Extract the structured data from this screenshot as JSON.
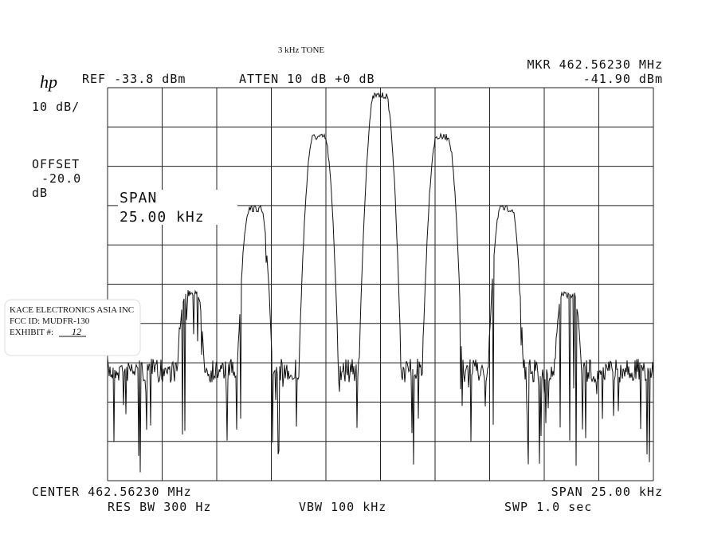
{
  "note_title": "3 kHz TONE",
  "logo": "hp",
  "header": {
    "ref": "REF -33.8 dBm",
    "atten": "ATTEN 10 dB +0 dB",
    "marker_freq": "MKR 462.56230 MHz",
    "marker_level": "-41.90 dBm"
  },
  "left_panel": {
    "scale": "10 dB/",
    "offset_label": "OFFSET",
    "offset_value": "-20.0",
    "offset_unit": "dB"
  },
  "span_annotation": {
    "label": "SPAN",
    "value": "25.00 kHz"
  },
  "stamp": {
    "company": "KACE ELECTRONICS ASIA INC",
    "fcc_id": "FCC ID:  MUDFR-130",
    "exhibit_label": "EXHIBIT #:",
    "exhibit_number": "12"
  },
  "footer": {
    "center": "CENTER 462.56230 MHz",
    "span": "SPAN 25.00 kHz",
    "res_bw": "RES BW 300 Hz",
    "vbw": "VBW 100 kHz",
    "sweep": "SWP 1.0 sec"
  }
}
